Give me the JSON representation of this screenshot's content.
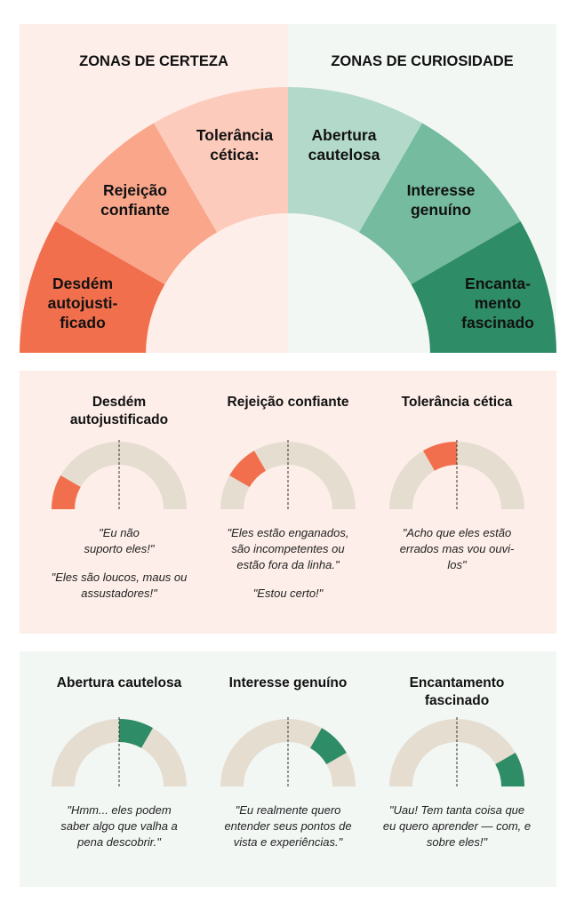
{
  "hero": {
    "left_heading": "ZONAS DE CERTEZA",
    "right_heading": "ZONAS DE CURIOSIDADE",
    "segments": [
      {
        "lines": [
          "Desdém",
          "autojusti-",
          "ficado"
        ],
        "color": "#f26f4d"
      },
      {
        "lines": [
          "Rejeição",
          "confiante"
        ],
        "color": "#f9a68b"
      },
      {
        "lines": [
          "Tolerância",
          "cética:"
        ],
        "color": "#fdcbbb"
      },
      {
        "lines": [
          "Abertura",
          "cautelosa"
        ],
        "color": "#b3d9ca"
      },
      {
        "lines": [
          "Interesse",
          "genuíno"
        ],
        "color": "#74bb9f"
      },
      {
        "lines": [
          "Encanta-",
          "mento",
          "fascinado"
        ],
        "color": "#2e8c66"
      }
    ]
  },
  "certainty": {
    "background": "#fdeee9",
    "cards": [
      {
        "title": "Desdém autojustificado",
        "segment_index": 0,
        "color": "#f26f4d",
        "quotes": [
          "\"Eu não suporto eles!\"",
          "\"Eles são loucos, maus ou assustadores!\""
        ]
      },
      {
        "title": "Rejeição confiante",
        "segment_index": 1,
        "color": "#f26f4d",
        "quotes": [
          "\"Eles estão enganados, são incompetentes ou estão fora da linha.\"",
          "\"Estou certo!\""
        ]
      },
      {
        "title": "Tolerância cética",
        "segment_index": 2,
        "color": "#f26f4d",
        "quotes": [
          "\"Acho que eles estão errados mas vou ouvi-los\""
        ]
      }
    ]
  },
  "curiosity": {
    "background": "#f2f7f4",
    "cards": [
      {
        "title": "Abertura cautelosa",
        "segment_index": 3,
        "color": "#2e8c66",
        "quotes": [
          "\"Hmm... eles podem saber algo que valha a pena descobrir.\""
        ]
      },
      {
        "title": "Interesse genuíno",
        "segment_index": 4,
        "color": "#2e8c66",
        "quotes": [
          "\"Eu realmente quero entender seus pontos de vista e experiências.\""
        ]
      },
      {
        "title": "Encantamento fascinado",
        "segment_index": 5,
        "color": "#2e8c66",
        "quotes": [
          "\"Uau! Tem tanta coisa que eu quero aprender — com, e sobre eles!\""
        ]
      }
    ]
  },
  "gauge_track_color": "#e6ddd1"
}
